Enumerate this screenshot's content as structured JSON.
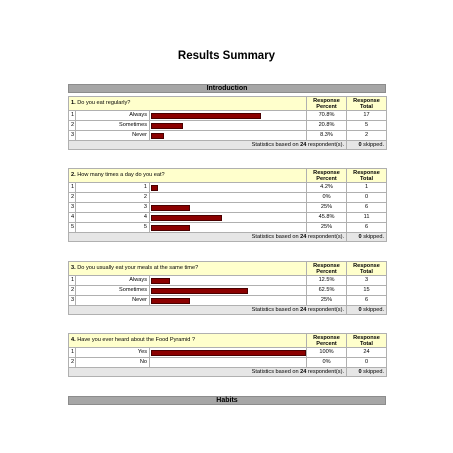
{
  "page_title": "Results Summary",
  "sections": [
    {
      "label": "Introduction"
    },
    {
      "label": "Habits"
    }
  ],
  "header_labels": {
    "percent_line1": "Response",
    "percent_line2": "Percent",
    "total_line1": "Response",
    "total_line2": "Total"
  },
  "stats_text": {
    "prefix": "Statistics based on ",
    "suffix": " respondent(s).",
    "skipped_suffix": " skipped."
  },
  "questions": [
    {
      "number": "1.",
      "text": "Do you eat regularly?",
      "respondents": "24",
      "skipped": "0",
      "rows": [
        {
          "index": "1",
          "label": "Always",
          "percent": "70.8%",
          "total": "17",
          "fraction": 0.708
        },
        {
          "index": "2",
          "label": "Sometimes",
          "percent": "20.8%",
          "total": "5",
          "fraction": 0.208
        },
        {
          "index": "3",
          "label": "Never",
          "percent": "8.3%",
          "total": "2",
          "fraction": 0.083
        }
      ]
    },
    {
      "number": "2.",
      "text": "How many times a day do you eat?",
      "respondents": "24",
      "skipped": "0",
      "rows": [
        {
          "index": "1",
          "label": "1",
          "percent": "4.2%",
          "total": "1",
          "fraction": 0.042
        },
        {
          "index": "2",
          "label": "2",
          "percent": "0%",
          "total": "0",
          "fraction": 0
        },
        {
          "index": "3",
          "label": "3",
          "percent": "25%",
          "total": "6",
          "fraction": 0.25
        },
        {
          "index": "4",
          "label": "4",
          "percent": "45.8%",
          "total": "11",
          "fraction": 0.458
        },
        {
          "index": "5",
          "label": "5",
          "percent": "25%",
          "total": "6",
          "fraction": 0.25
        }
      ]
    },
    {
      "number": "3.",
      "text": "Do you usually eat your meals at the same time?",
      "respondents": "24",
      "skipped": "0",
      "rows": [
        {
          "index": "1",
          "label": "Always",
          "percent": "12.5%",
          "total": "3",
          "fraction": 0.125
        },
        {
          "index": "2",
          "label": "Sometimes",
          "percent": "62.5%",
          "total": "15",
          "fraction": 0.625
        },
        {
          "index": "3",
          "label": "Never",
          "percent": "25%",
          "total": "6",
          "fraction": 0.25
        }
      ]
    },
    {
      "number": "4.",
      "text": "Have you ever heard about the Food Pyramid ?",
      "respondents": "24",
      "skipped": "0",
      "rows": [
        {
          "index": "1",
          "label": "Yes",
          "percent": "100%",
          "total": "24",
          "fraction": 1.0
        },
        {
          "index": "2",
          "label": "No",
          "percent": "0%",
          "total": "0",
          "fraction": 0
        }
      ]
    }
  ]
}
